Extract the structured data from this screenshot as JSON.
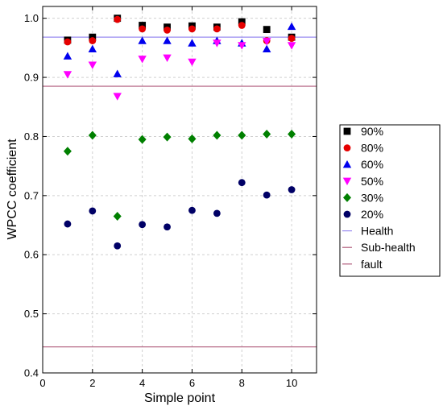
{
  "chart_data": {
    "type": "scatter",
    "xlabel": "Simple point",
    "ylabel": "WPCC coefficient",
    "xlim": [
      0,
      11
    ],
    "ylim": [
      0.4,
      1.02
    ],
    "xticks": [
      0,
      2,
      4,
      6,
      8,
      10
    ],
    "yticks": [
      0.4,
      0.5,
      0.6,
      0.7,
      0.8,
      0.9,
      1.0
    ],
    "grid": "dashed vertical and horizontal",
    "legend_position": "right",
    "x": [
      1,
      2,
      3,
      4,
      5,
      6,
      7,
      8,
      9,
      10
    ],
    "series": [
      {
        "name": "90%",
        "marker": "square",
        "color": "#000000",
        "values": [
          0.963,
          0.968,
          1.0,
          0.988,
          0.985,
          0.987,
          0.985,
          0.994,
          0.981,
          0.968
        ]
      },
      {
        "name": "80%",
        "marker": "circle",
        "color": "#e60000",
        "values": [
          0.96,
          0.962,
          0.998,
          0.982,
          0.98,
          0.982,
          0.982,
          0.988,
          0.962,
          0.966
        ]
      },
      {
        "name": "60%",
        "marker": "triangle-up",
        "color": "#0000ee",
        "values": [
          0.936,
          0.948,
          0.906,
          0.962,
          0.962,
          0.958,
          0.962,
          0.958,
          0.948,
          0.986
        ]
      },
      {
        "name": "50%",
        "marker": "triangle-down",
        "color": "#ff00ff",
        "values": [
          0.905,
          0.921,
          0.868,
          0.931,
          0.933,
          0.926,
          0.958,
          0.954,
          0.961,
          0.954
        ]
      },
      {
        "name": "30%",
        "marker": "diamond",
        "color": "#008000",
        "values": [
          0.775,
          0.802,
          0.665,
          0.795,
          0.799,
          0.796,
          0.802,
          0.802,
          0.804,
          0.804
        ]
      },
      {
        "name": "20%",
        "marker": "circle",
        "color": "#000066",
        "values": [
          0.652,
          0.674,
          0.615,
          0.651,
          0.647,
          0.675,
          0.67,
          0.722,
          0.701,
          0.71
        ]
      }
    ],
    "reference_lines": [
      {
        "name": "Health",
        "y": 0.968,
        "color": "#9a8cf0"
      },
      {
        "name": "Sub-health",
        "y": 0.885,
        "color": "#b05c7c"
      },
      {
        "name": "fault",
        "y": 0.444,
        "color": "#b05c7c"
      }
    ]
  }
}
